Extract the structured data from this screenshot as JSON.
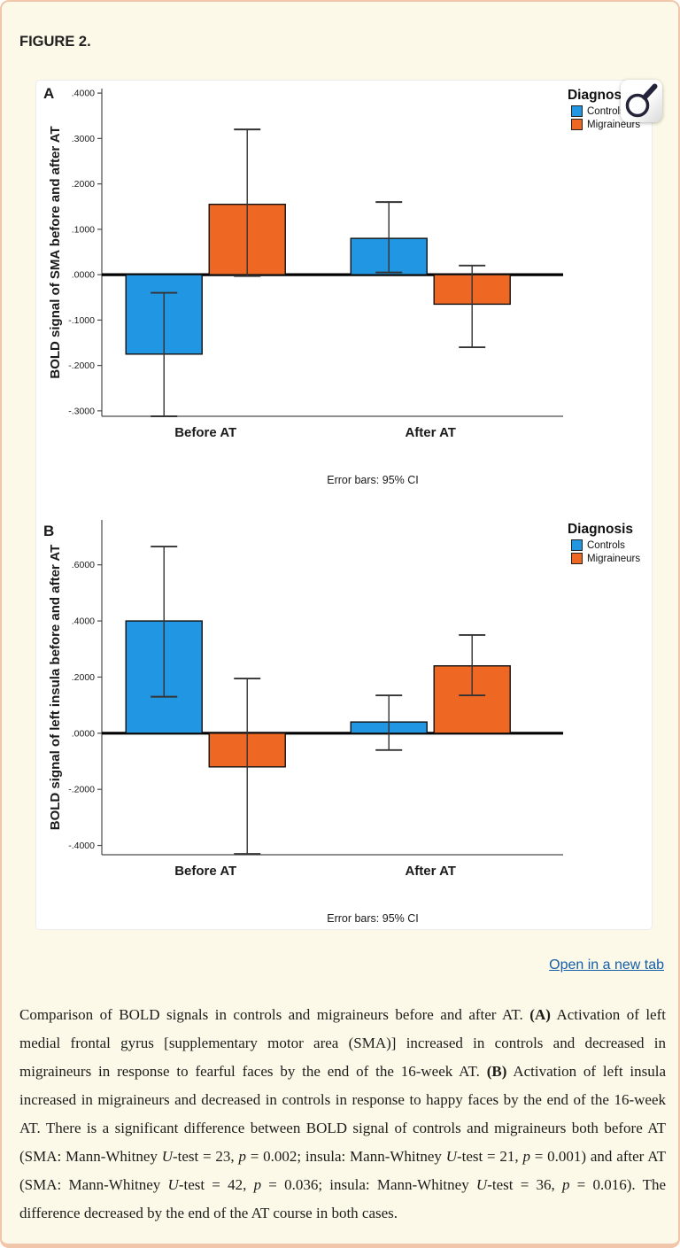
{
  "page": {
    "title": "FIGURE 2.",
    "open_link": "Open in a new tab"
  },
  "chart_data": [
    {
      "type": "bar",
      "panel": "A",
      "ylabel": "BOLD signal of SMA before and after AT",
      "categories": [
        "Before AT",
        "After AT"
      ],
      "legend_title": "Diagnosis",
      "legend_position": "top-right",
      "grid": false,
      "ylim": [
        -0.312,
        0.41
      ],
      "yticks": [
        0.4,
        0.3,
        0.2,
        0.1,
        0.0,
        -0.1,
        -0.2,
        -0.3
      ],
      "ytick_labels": [
        ".4000",
        ".3000",
        ".2000",
        ".1000",
        ".0000",
        "-.1000",
        "-.2000",
        "-.3000"
      ],
      "series": [
        {
          "name": "Controls",
          "color": "#2196e3",
          "values": [
            -0.175,
            0.08
          ],
          "ci_low": [
            -0.312,
            0.005
          ],
          "ci_high": [
            -0.04,
            0.16
          ]
        },
        {
          "name": "Migraineurs",
          "color": "#ee6824",
          "values": [
            0.155,
            -0.065
          ],
          "ci_low": [
            -0.003,
            -0.16
          ],
          "ci_high": [
            0.32,
            0.02
          ]
        }
      ],
      "footnote": "Error bars: 95% CI"
    },
    {
      "type": "bar",
      "panel": "B",
      "ylabel": "BOLD signal of left insula before and after AT",
      "categories": [
        "Before AT",
        "After AT"
      ],
      "legend_title": "Diagnosis",
      "legend_position": "top-right",
      "grid": false,
      "ylim": [
        -0.433,
        0.76
      ],
      "yticks": [
        0.6,
        0.4,
        0.2,
        0.0,
        -0.2,
        -0.4
      ],
      "ytick_labels": [
        ".6000",
        ".4000",
        ".2000",
        ".0000",
        "-.2000",
        "-.4000"
      ],
      "series": [
        {
          "name": "Controls",
          "color": "#2196e3",
          "values": [
            0.4,
            0.04
          ],
          "ci_low": [
            0.13,
            -0.06
          ],
          "ci_high": [
            0.665,
            0.135
          ]
        },
        {
          "name": "Migraineurs",
          "color": "#ee6824",
          "values": [
            -0.12,
            0.24
          ],
          "ci_low": [
            -0.43,
            0.135
          ],
          "ci_high": [
            0.195,
            0.35
          ]
        }
      ],
      "footnote": "Error bars: 95% CI"
    }
  ],
  "caption": {
    "segments": [
      {
        "text": "Comparison of BOLD signals in controls and migraineurs before and after AT. "
      },
      {
        "text": "(A)",
        "style": "b"
      },
      {
        "text": " Activation of left medial frontal gyrus [supplementary motor area (SMA)] increased in controls and decreased in migraineurs in response to fearful faces by the end of the 16-week AT. "
      },
      {
        "text": "(B)",
        "style": "b"
      },
      {
        "text": " Activation of left insula increased in migraineurs and decreased in controls in response to happy faces by the end of the 16-week AT. There is a significant difference between BOLD signal of controls and migraineurs both before AT (SMA: Mann-Whitney "
      },
      {
        "text": "U",
        "style": "i"
      },
      {
        "text": "-test = 23, "
      },
      {
        "text": "p",
        "style": "i"
      },
      {
        "text": " = 0.002; insula: Mann-Whitney "
      },
      {
        "text": "U",
        "style": "i"
      },
      {
        "text": "-test = 21, "
      },
      {
        "text": "p",
        "style": "i"
      },
      {
        "text": " = 0.001) and after AT (SMA: Mann-Whitney "
      },
      {
        "text": "U",
        "style": "i"
      },
      {
        "text": "-test = 42, "
      },
      {
        "text": "p",
        "style": "i"
      },
      {
        "text": " = 0.036; insula: Mann-Whitney "
      },
      {
        "text": "U",
        "style": "i"
      },
      {
        "text": "-test = 36, "
      },
      {
        "text": "p",
        "style": "i"
      },
      {
        "text": " = 0.016). The difference decreased by the end of the AT course in both cases."
      }
    ]
  }
}
